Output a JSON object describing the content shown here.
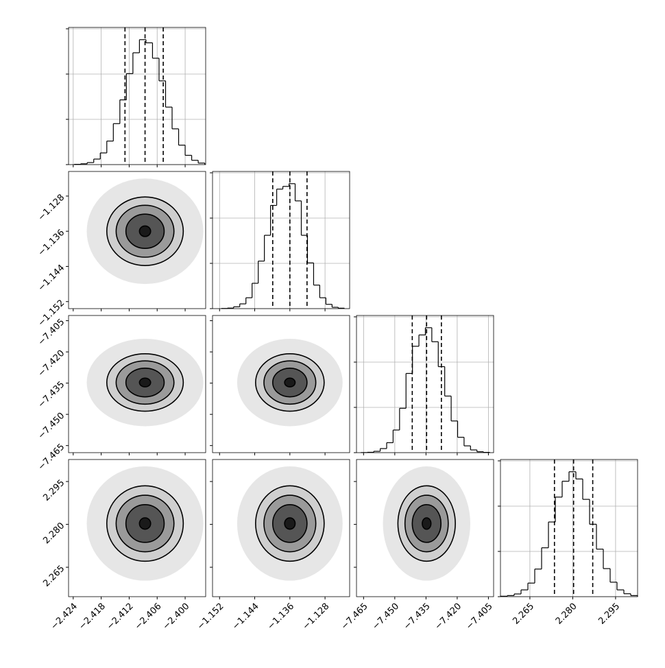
{
  "chart_data": {
    "type": "corner",
    "grid": true,
    "quantile_style": "dashed",
    "hist_ylim": [
      0,
      3030
    ],
    "hist_yticks": [
      0,
      1000,
      2000,
      3000
    ],
    "params": [
      {
        "lim": [
          -2.425,
          -2.3956
        ],
        "ticks": [
          {
            "value": -2.424,
            "label": "−2.424"
          },
          {
            "value": -2.418,
            "label": "−2.418"
          },
          {
            "value": -2.412,
            "label": "−2.412"
          },
          {
            "value": -2.406,
            "label": "−2.406"
          },
          {
            "value": -2.4,
            "label": "−2.400"
          }
        ],
        "bins": [
          -2.4238,
          -2.4224,
          -2.421,
          -2.4196,
          -2.4182,
          -2.4168,
          -2.4154,
          -2.414,
          -2.4126,
          -2.4112,
          -2.4098,
          -2.4084,
          -2.407,
          -2.4056,
          -2.4042,
          -2.4028,
          -2.4014,
          -2.4,
          -2.3986,
          -2.3972,
          -2.3958
        ],
        "counts": [
          6,
          18,
          45,
          122,
          258,
          520,
          905,
          1430,
          2010,
          2470,
          2760,
          2690,
          2350,
          1850,
          1270,
          790,
          430,
          205,
          95,
          34
        ],
        "quantiles": [
          -2.4129,
          -2.4086,
          -2.4047
        ]
      },
      {
        "lim": [
          -1.1536,
          -1.1224
        ],
        "ticks": [
          {
            "value": -1.152,
            "label": "−1.152"
          },
          {
            "value": -1.144,
            "label": "−1.144"
          },
          {
            "value": -1.136,
            "label": "−1.136"
          },
          {
            "value": -1.128,
            "label": "−1.128"
          }
        ],
        "bins": [
          -1.1516,
          -1.1502,
          -1.1488,
          -1.1474,
          -1.146,
          -1.1446,
          -1.1432,
          -1.1418,
          -1.1404,
          -1.139,
          -1.1376,
          -1.1362,
          -1.1348,
          -1.1334,
          -1.132,
          -1.1306,
          -1.1292,
          -1.1278,
          -1.1264,
          -1.125,
          -1.1236
        ],
        "counts": [
          4,
          12,
          40,
          105,
          240,
          560,
          1050,
          1620,
          2280,
          2640,
          2700,
          2760,
          2380,
          1620,
          1010,
          520,
          240,
          95,
          30,
          10
        ],
        "quantiles": [
          -1.1399,
          -1.136,
          -1.1321
        ]
      },
      {
        "lim": [
          -7.4684,
          -7.4025
        ],
        "ticks": [
          {
            "value": -7.465,
            "label": "−7.465"
          },
          {
            "value": -7.45,
            "label": "−7.450"
          },
          {
            "value": -7.435,
            "label": "−7.435"
          },
          {
            "value": -7.42,
            "label": "−7.420"
          },
          {
            "value": -7.405,
            "label": "−7.405"
          }
        ],
        "bins": [
          -7.4663,
          -7.4632,
          -7.4601,
          -7.457,
          -7.4539,
          -7.4508,
          -7.4477,
          -7.4446,
          -7.4415,
          -7.4384,
          -7.4353,
          -7.4322,
          -7.4291,
          -7.426,
          -7.4229,
          -7.4198,
          -7.4167,
          -7.4136,
          -7.4105,
          -7.4074,
          -7.4043
        ],
        "counts": [
          2,
          8,
          30,
          90,
          220,
          500,
          980,
          1750,
          2350,
          2600,
          2760,
          2450,
          1900,
          1250,
          700,
          340,
          150,
          60,
          20,
          6
        ],
        "quantiles": [
          -7.4416,
          -7.4347,
          -7.4276
        ]
      },
      {
        "lim": [
          2.2547,
          2.3027
        ],
        "ticks": [
          2.265,
          {
            "value": 2.28,
            "label": "2.280"
          },
          2.295
        ],
        "bins": [
          2.2547,
          2.2571,
          2.2595,
          2.2619,
          2.2643,
          2.2667,
          2.2691,
          2.2715,
          2.2739,
          2.2763,
          2.2787,
          2.2811,
          2.2835,
          2.2859,
          2.2883,
          2.2907,
          2.2931,
          2.2955,
          2.2979,
          2.3003,
          2.3027
        ],
        "counts": [
          10,
          25,
          60,
          150,
          300,
          610,
          1080,
          1650,
          2200,
          2550,
          2760,
          2600,
          2150,
          1600,
          1050,
          620,
          320,
          150,
          65,
          25
        ],
        "quantiles": [
          2.2736,
          2.2803,
          2.287
        ]
      }
    ],
    "pairs": [
      {
        "x": 0,
        "y": 1,
        "center": [
          -2.4086,
          -1.136
        ],
        "contours": [
          [
            0.0012,
            0.0012
          ],
          [
            0.0041,
            0.0039
          ],
          [
            0.0062,
            0.0059
          ],
          [
            0.0082,
            0.0078
          ]
        ],
        "extent": [
          0.0125,
          0.012
        ]
      },
      {
        "x": 0,
        "y": 2,
        "center": [
          -2.4086,
          -7.4347
        ],
        "contours": [
          [
            0.0012,
            0.0021
          ],
          [
            0.0041,
            0.0069
          ],
          [
            0.0062,
            0.0104
          ],
          [
            0.0082,
            0.0138
          ]
        ],
        "extent": [
          0.0125,
          0.021
        ]
      },
      {
        "x": 0,
        "y": 3,
        "center": [
          -2.4086,
          2.2803
        ],
        "contours": [
          [
            0.0012,
            0.002
          ],
          [
            0.0041,
            0.0066
          ],
          [
            0.0062,
            0.0099
          ],
          [
            0.0082,
            0.0132
          ]
        ],
        "extent": [
          0.0125,
          0.02
        ]
      },
      {
        "x": 1,
        "y": 2,
        "center": [
          -1.136,
          -7.4347
        ],
        "contours": [
          [
            0.0012,
            0.0021
          ],
          [
            0.0039,
            0.0069
          ],
          [
            0.0059,
            0.0104
          ],
          [
            0.0078,
            0.0138
          ]
        ],
        "extent": [
          0.012,
          0.021
        ]
      },
      {
        "x": 1,
        "y": 3,
        "center": [
          -1.136,
          2.2803
        ],
        "contours": [
          [
            0.0012,
            0.002
          ],
          [
            0.0039,
            0.0066
          ],
          [
            0.0059,
            0.0099
          ],
          [
            0.0078,
            0.0132
          ]
        ],
        "extent": [
          0.012,
          0.02
        ]
      },
      {
        "x": 2,
        "y": 3,
        "center": [
          -7.4347,
          2.2803
        ],
        "contours": [
          [
            0.0021,
            0.002
          ],
          [
            0.0069,
            0.0066
          ],
          [
            0.0104,
            0.0099
          ],
          [
            0.0138,
            0.0132
          ]
        ],
        "extent": [
          0.021,
          0.02
        ]
      }
    ]
  }
}
